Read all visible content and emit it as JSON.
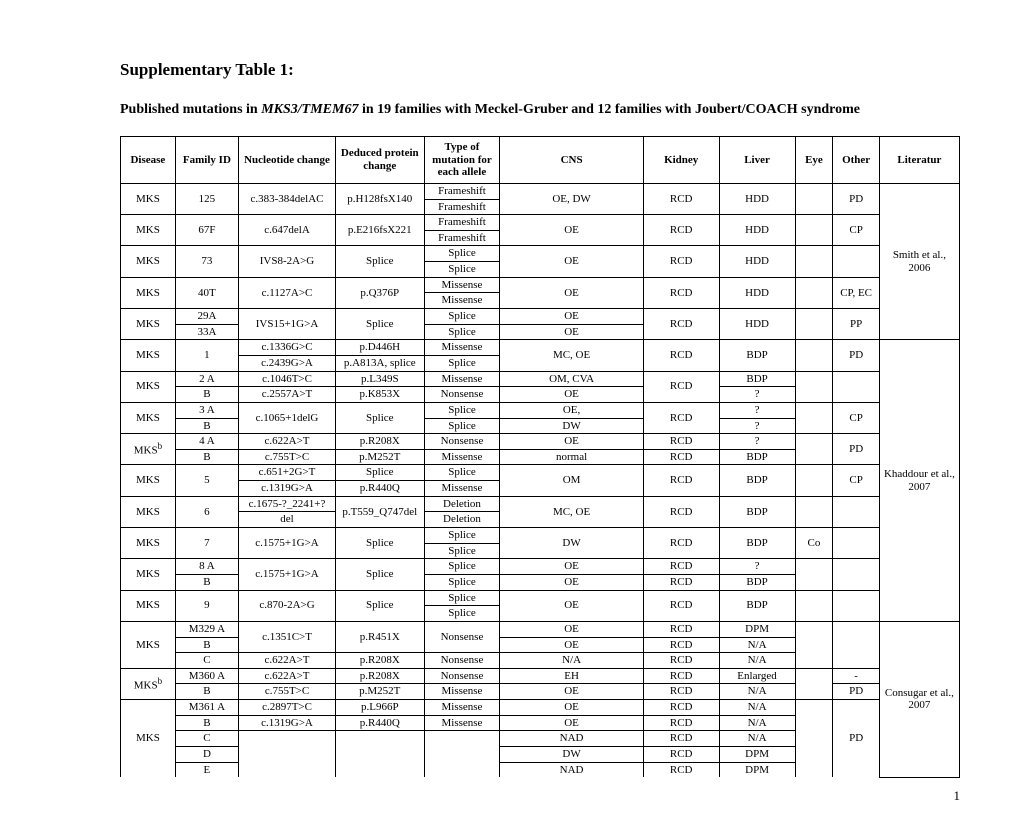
{
  "title": "Supplementary Table 1:",
  "subtitle_pre": "Published mutations in ",
  "subtitle_italic": "MKS3/TMEM67",
  "subtitle_post": " in 19 families with Meckel-Gruber and 12 families with Joubert/COACH syndrome",
  "headers": {
    "disease": "Disease",
    "family": "Family ID",
    "nuc": "Nucleotide change",
    "prot": "Deduced protein change",
    "type": "Type of mutation for each allele",
    "cns": "CNS",
    "kidney": "Kidney",
    "liver": "Liver",
    "eye": "Eye",
    "other": "Other",
    "lit": "Literatur"
  },
  "lit1": "Smith et al., 2006",
  "lit2": "Khaddour et al., 2007",
  "lit3": "Consugar et al., 2007",
  "page": "1",
  "r1": {
    "d": "MKS",
    "f": "125",
    "n": "c.383-384delAC",
    "p": "p.H128fsX140",
    "t1": "Frameshift",
    "t2": "Frameshift",
    "cns": "OE, DW",
    "kid": "RCD",
    "liv": "HDD",
    "eye": "",
    "oth": "PD"
  },
  "r2": {
    "d": "MKS",
    "f": "67F",
    "n": "c.647delA",
    "p": "p.E216fsX221",
    "t1": "Frameshift",
    "t2": "Frameshift",
    "cns": "OE",
    "kid": "RCD",
    "liv": "HDD",
    "eye": "",
    "oth": "CP"
  },
  "r3": {
    "d": "MKS",
    "f": "73",
    "n": "IVS8-2A>G",
    "p": "Splice",
    "t1": "Splice",
    "t2": "Splice",
    "cns": "OE",
    "kid": "RCD",
    "liv": "HDD",
    "eye": "",
    "oth": ""
  },
  "r4": {
    "d": "MKS",
    "f": "40T",
    "n": "c.1127A>C",
    "p": "p.Q376P",
    "t1": "Missense",
    "t2": "Missense",
    "cns": "OE",
    "kid": "RCD",
    "liv": "HDD",
    "eye": "",
    "oth": "CP, EC"
  },
  "r5": {
    "d": "MKS",
    "f1": "29A",
    "f2": "33A",
    "n": "IVS15+1G>A",
    "p": "Splice",
    "t1": "Splice",
    "t2": "Splice",
    "cns1": "OE",
    "cns2": "OE",
    "kid": "RCD",
    "liv": "HDD",
    "eye": "",
    "oth": "PP"
  },
  "r6": {
    "d": "MKS",
    "f": "1",
    "n1": "c.1336G>C",
    "n2": "c.2439G>A",
    "p1": "p.D446H",
    "p2": "p.A813A, splice",
    "t1": "Missense",
    "t2": "Splice",
    "cns": "MC, OE",
    "kid": "RCD",
    "liv": "BDP",
    "eye": "",
    "oth": "PD"
  },
  "r7": {
    "d": "MKS",
    "f1": "2 A",
    "f2": "B",
    "n1": "c.1046T>C",
    "n2": "c.2557A>T",
    "p1": "p.L349S",
    "p2": "p.K853X",
    "t1": "Missense",
    "t2": "Nonsense",
    "cns1": "OM, CVA",
    "cns2": "OE",
    "kid": "RCD",
    "liv1": "BDP",
    "liv2": "?",
    "eye": "",
    "oth": ""
  },
  "r8": {
    "d": "MKS",
    "f1": "3 A",
    "f2": "B",
    "n": "c.1065+1delG",
    "p": "Splice",
    "t1": "Splice",
    "t2": "Splice",
    "cns1": "OE,",
    "cns2": "DW",
    "kid": "RCD",
    "liv1": "?",
    "liv2": "?",
    "eye": "",
    "oth": "CP"
  },
  "r9": {
    "d": "MKS",
    "sup": "b",
    "f1": "4 A",
    "f2": "B",
    "n1": "c.622A>T",
    "n2": "c.755T>C",
    "p1": "p.R208X",
    "p2": "p.M252T",
    "t1": "Nonsense",
    "t2": "Missense",
    "cns1": "OE",
    "cns2": "normal",
    "kid1": "RCD",
    "kid2": "RCD",
    "liv1": "?",
    "liv2": "BDP",
    "eye": "",
    "oth": "PD"
  },
  "r10": {
    "d": "MKS",
    "f": "5",
    "n1": "c.651+2G>T",
    "n2": "c.1319G>A",
    "p1": "Splice",
    "p2": "p.R440Q",
    "t1": "Splice",
    "t2": "Missense",
    "cns": "OM",
    "kid": "RCD",
    "liv": "BDP",
    "eye": "",
    "oth": "CP"
  },
  "r11": {
    "d": "MKS",
    "f": "6",
    "n1": "c.1675-?_2241+?",
    "n2": "del",
    "p": "p.T559_Q747del",
    "t1": "Deletion",
    "t2": "Deletion",
    "cns": "MC, OE",
    "kid": "RCD",
    "liv": "BDP",
    "eye": "",
    "oth": ""
  },
  "r12": {
    "d": "MKS",
    "f": "7",
    "n": "c.1575+1G>A",
    "p": "Splice",
    "t1": "Splice",
    "t2": "Splice",
    "cns": "DW",
    "kid": "RCD",
    "liv": "BDP",
    "eye": "Co",
    "oth": ""
  },
  "r13": {
    "d": "MKS",
    "f1": "8 A",
    "f2": "B",
    "n": "c.1575+1G>A",
    "p": "Splice",
    "t1": "Splice",
    "t2": "Splice",
    "cns1": "OE",
    "cns2": "OE",
    "kid1": "RCD",
    "kid2": "RCD",
    "liv1": "?",
    "liv2": "BDP",
    "eye": "",
    "oth": ""
  },
  "r14": {
    "d": "MKS",
    "f": "9",
    "n": "c.870-2A>G",
    "p": "Splice",
    "t1": "Splice",
    "t2": "Splice",
    "cns": "OE",
    "kid": "RCD",
    "liv": "BDP",
    "eye": "",
    "oth": ""
  },
  "r15": {
    "d": "MKS",
    "f1": "M329 A",
    "f2": "B",
    "f3": "C",
    "n1": "c.1351C>T",
    "n2": "c.622A>T",
    "p1": "p.R451X",
    "p2": "p.R208X",
    "t1": "Nonsense",
    "t2": "Nonsense",
    "cns1": "OE",
    "cns2": "OE",
    "cns3": "N/A",
    "kid1": "RCD",
    "kid2": "RCD",
    "kid3": "RCD",
    "liv1": "DPM",
    "liv2": "N/A",
    "liv3": "N/A",
    "eye": "",
    "oth": ""
  },
  "r16": {
    "d": "MKS",
    "sup": "b",
    "f1": "M360 A",
    "f2": "B",
    "n1": "c.622A>T",
    "n2": "c.755T>C",
    "p1": "p.R208X",
    "p2": "p.M252T",
    "t1": "Nonsense",
    "t2": "Missense",
    "cns1": "EH",
    "cns2": "OE",
    "kid1": "RCD",
    "kid2": "RCD",
    "liv1": "Enlarged",
    "liv2": "N/A",
    "eye": "",
    "oth1": "-",
    "oth2": "PD"
  },
  "r17": {
    "d": "MKS",
    "f1": "M361 A",
    "f2": "B",
    "f3": "C",
    "f4": "D",
    "f5": "E",
    "n1": "c.2897T>C",
    "n2": "c.1319G>A",
    "p1": "p.L966P",
    "p2": "p.R440Q",
    "t1": "Missense",
    "t2": "Missense",
    "cns1": "OE",
    "cns2": "OE",
    "cns3": "NAD",
    "cns4": "DW",
    "cns5": "NAD",
    "kid": "RCD",
    "liv1": "N/A",
    "liv2": "N/A",
    "liv3": "N/A",
    "liv4": "DPM",
    "liv5": "DPM",
    "eye": "",
    "oth": "PD"
  }
}
